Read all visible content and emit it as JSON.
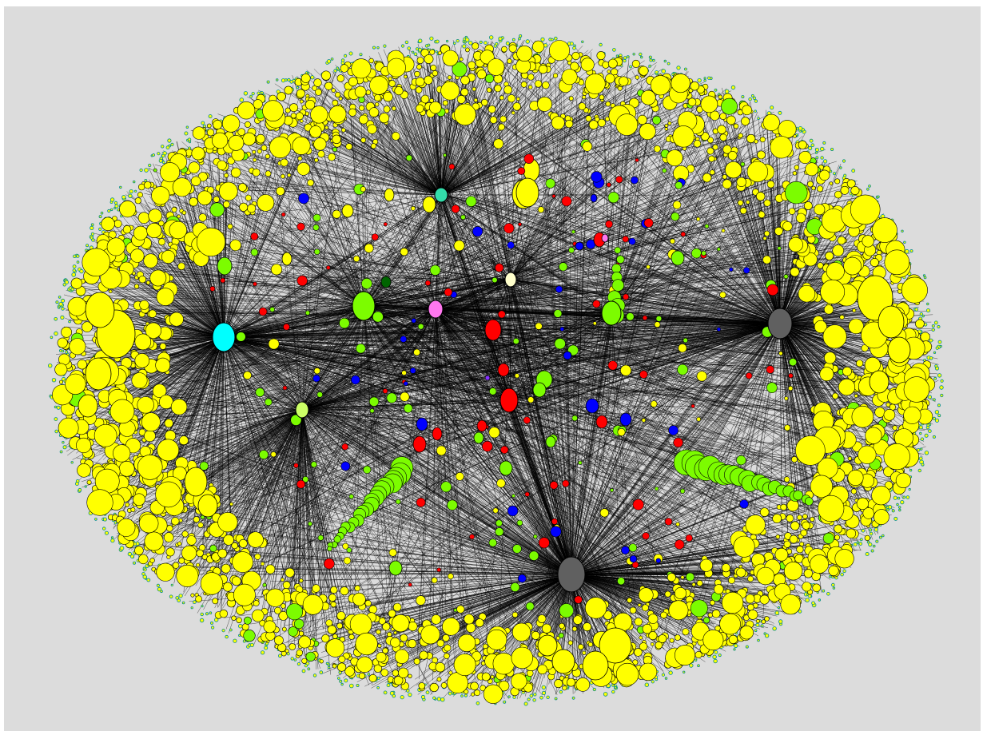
{
  "colors": {
    "background": "#dcdcdc",
    "page": "#ffffff",
    "edge": "#000000",
    "node_outline": "#000000",
    "leaf_node": "#ffff00",
    "leaf_outline": "#008b8b",
    "hub_gray": "#606060",
    "hub_cyan": "#00ffff",
    "hub_green": "#7cfc00",
    "hub_pink": "#ff77ee",
    "hub_red": "#ff0000",
    "hub_blue": "#0000ff",
    "hub_dark_green": "#006400",
    "hub_pale_yellow": "#ffffcc",
    "hub_light_green": "#ccff66",
    "hub_teal": "#33ddaa",
    "hub_purple": "#8833ff"
  },
  "hubs": [
    {
      "id": "gray-hub-bottom",
      "color": "hub_gray"
    },
    {
      "id": "gray-hub-right",
      "color": "hub_gray"
    },
    {
      "id": "cyan-hub",
      "color": "hub_cyan"
    },
    {
      "id": "green-hub",
      "color": "hub_green"
    },
    {
      "id": "pink-hub",
      "color": "hub_pink"
    },
    {
      "id": "pale-yellow-hub",
      "color": "hub_pale_yellow"
    },
    {
      "id": "light-green-hub",
      "color": "hub_light_green"
    },
    {
      "id": "teal-hub",
      "color": "hub_teal"
    },
    {
      "id": "red-hub",
      "color": "hub_red"
    },
    {
      "id": "green-hub-right",
      "color": "hub_green"
    }
  ]
}
